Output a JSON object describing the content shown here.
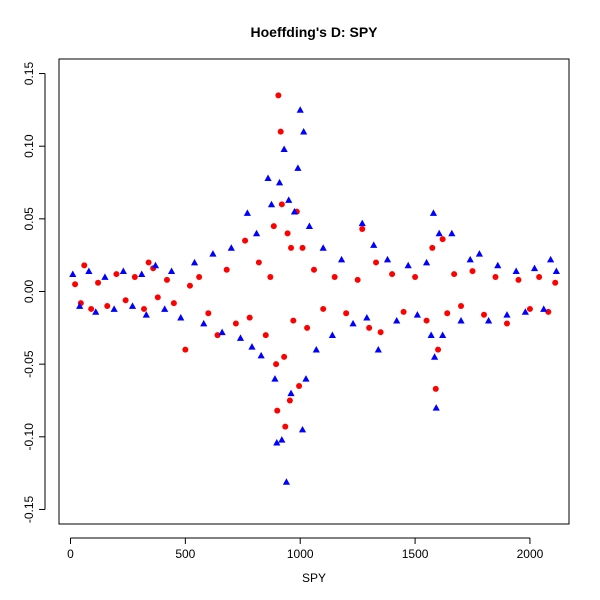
{
  "chart_data": {
    "type": "scatter",
    "title": "Hoeffding's D:  SPY",
    "xlabel": "SPY",
    "ylabel": "",
    "xlim": [
      -50,
      2170
    ],
    "ylim": [
      -0.16,
      0.16
    ],
    "x_ticks": [
      0,
      500,
      1000,
      1500,
      2000
    ],
    "x_tick_labels": [
      "0",
      "500",
      "1000",
      "1500",
      "2000"
    ],
    "y_ticks": [
      -0.15,
      -0.1,
      -0.05,
      0.0,
      0.05,
      0.1,
      0.15
    ],
    "y_tick_labels": [
      "-0.15",
      "-0.10",
      "-0.05",
      "0.00",
      "0.05",
      "0.10",
      "0.15"
    ],
    "grid": false,
    "series": [
      {
        "marker": "circle",
        "color": "#ff0000",
        "points": [
          [
            20,
            0.005
          ],
          [
            45,
            -0.008
          ],
          [
            60,
            0.018
          ],
          [
            90,
            -0.012
          ],
          [
            120,
            0.006
          ],
          [
            160,
            -0.01
          ],
          [
            200,
            0.012
          ],
          [
            240,
            -0.006
          ],
          [
            280,
            0.01
          ],
          [
            320,
            -0.012
          ],
          [
            340,
            0.02
          ],
          [
            360,
            0.016
          ],
          [
            380,
            -0.004
          ],
          [
            420,
            0.008
          ],
          [
            450,
            -0.008
          ],
          [
            500,
            -0.04
          ],
          [
            520,
            0.004
          ],
          [
            560,
            0.01
          ],
          [
            600,
            -0.015
          ],
          [
            640,
            -0.03
          ],
          [
            680,
            0.015
          ],
          [
            720,
            -0.022
          ],
          [
            760,
            0.035
          ],
          [
            780,
            -0.018
          ],
          [
            820,
            0.02
          ],
          [
            850,
            -0.03
          ],
          [
            870,
            0.01
          ],
          [
            885,
            0.045
          ],
          [
            895,
            -0.05
          ],
          [
            900,
            -0.082
          ],
          [
            905,
            0.135
          ],
          [
            915,
            0.11
          ],
          [
            920,
            0.06
          ],
          [
            930,
            -0.045
          ],
          [
            935,
            -0.093
          ],
          [
            945,
            0.04
          ],
          [
            955,
            -0.075
          ],
          [
            960,
            0.03
          ],
          [
            970,
            -0.02
          ],
          [
            985,
            0.055
          ],
          [
            995,
            -0.065
          ],
          [
            1010,
            0.03
          ],
          [
            1030,
            -0.025
          ],
          [
            1060,
            0.015
          ],
          [
            1100,
            -0.012
          ],
          [
            1150,
            0.01
          ],
          [
            1200,
            -0.015
          ],
          [
            1250,
            0.008
          ],
          [
            1270,
            0.043
          ],
          [
            1300,
            -0.025
          ],
          [
            1330,
            0.02
          ],
          [
            1350,
            -0.028
          ],
          [
            1400,
            0.012
          ],
          [
            1450,
            -0.014
          ],
          [
            1500,
            0.01
          ],
          [
            1550,
            -0.02
          ],
          [
            1575,
            0.03
          ],
          [
            1590,
            -0.067
          ],
          [
            1600,
            -0.04
          ],
          [
            1620,
            0.036
          ],
          [
            1640,
            -0.015
          ],
          [
            1670,
            0.012
          ],
          [
            1700,
            -0.01
          ],
          [
            1750,
            0.014
          ],
          [
            1800,
            -0.016
          ],
          [
            1850,
            0.01
          ],
          [
            1900,
            -0.022
          ],
          [
            1950,
            0.008
          ],
          [
            2000,
            -0.012
          ],
          [
            2040,
            0.01
          ],
          [
            2080,
            -0.014
          ],
          [
            2110,
            0.006
          ]
        ]
      },
      {
        "marker": "triangle",
        "color": "#0000ff",
        "points": [
          [
            10,
            0.012
          ],
          [
            40,
            -0.01
          ],
          [
            80,
            0.014
          ],
          [
            110,
            -0.014
          ],
          [
            150,
            0.01
          ],
          [
            190,
            -0.012
          ],
          [
            230,
            0.014
          ],
          [
            270,
            -0.01
          ],
          [
            310,
            0.012
          ],
          [
            330,
            -0.016
          ],
          [
            370,
            0.018
          ],
          [
            410,
            -0.012
          ],
          [
            440,
            0.014
          ],
          [
            480,
            -0.018
          ],
          [
            540,
            0.02
          ],
          [
            580,
            -0.022
          ],
          [
            620,
            0.026
          ],
          [
            660,
            -0.028
          ],
          [
            700,
            0.03
          ],
          [
            740,
            -0.032
          ],
          [
            770,
            0.054
          ],
          [
            790,
            -0.038
          ],
          [
            810,
            0.04
          ],
          [
            830,
            -0.044
          ],
          [
            860,
            0.078
          ],
          [
            875,
            0.06
          ],
          [
            890,
            -0.06
          ],
          [
            898,
            -0.104
          ],
          [
            910,
            0.075
          ],
          [
            920,
            -0.102
          ],
          [
            930,
            0.098
          ],
          [
            940,
            -0.131
          ],
          [
            950,
            0.063
          ],
          [
            960,
            -0.07
          ],
          [
            975,
            0.055
          ],
          [
            990,
            0.085
          ],
          [
            1000,
            0.125
          ],
          [
            1010,
            -0.095
          ],
          [
            1015,
            0.11
          ],
          [
            1025,
            -0.06
          ],
          [
            1040,
            0.045
          ],
          [
            1070,
            -0.04
          ],
          [
            1100,
            0.03
          ],
          [
            1140,
            -0.03
          ],
          [
            1180,
            0.022
          ],
          [
            1230,
            -0.022
          ],
          [
            1270,
            0.047
          ],
          [
            1290,
            -0.018
          ],
          [
            1320,
            0.032
          ],
          [
            1340,
            -0.04
          ],
          [
            1380,
            0.022
          ],
          [
            1420,
            -0.02
          ],
          [
            1470,
            0.018
          ],
          [
            1510,
            -0.016
          ],
          [
            1550,
            0.02
          ],
          [
            1570,
            -0.03
          ],
          [
            1580,
            0.054
          ],
          [
            1585,
            -0.045
          ],
          [
            1592,
            -0.08
          ],
          [
            1605,
            0.04
          ],
          [
            1620,
            -0.03
          ],
          [
            1660,
            0.04
          ],
          [
            1700,
            -0.02
          ],
          [
            1740,
            0.022
          ],
          [
            1780,
            0.026
          ],
          [
            1820,
            -0.02
          ],
          [
            1860,
            0.018
          ],
          [
            1900,
            -0.016
          ],
          [
            1940,
            0.014
          ],
          [
            1980,
            -0.014
          ],
          [
            2020,
            0.016
          ],
          [
            2060,
            -0.012
          ],
          [
            2090,
            0.022
          ],
          [
            2115,
            0.014
          ]
        ]
      }
    ]
  }
}
